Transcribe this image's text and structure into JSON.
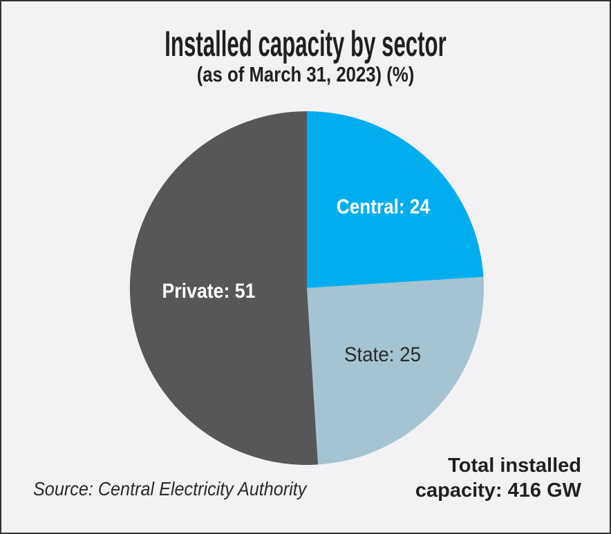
{
  "chart_data": {
    "type": "pie",
    "title": "Installed capacity by sector",
    "subtitle": "(as of March 31, 2023) (%)",
    "unit": "%",
    "start_angle_deg": 0,
    "direction": "clockwise",
    "slices": [
      {
        "label": "Central",
        "value": 24,
        "color": "#00aeef",
        "label_color": "#ffffff",
        "bold_label": true,
        "label_radius_frac": 0.63
      },
      {
        "label": "State",
        "value": 25,
        "color": "#a6c3d1",
        "label_color": "#2b2b2d",
        "bold_label": false,
        "label_radius_frac": 0.57
      },
      {
        "label": "Private",
        "value": 51,
        "color": "#575659",
        "label_color": "#ffffff",
        "bold_label": true,
        "label_radius_frac": 0.555
      }
    ],
    "annotations": {
      "total": "Total installed capacity: 416 GW",
      "source": "Central Electricity Authority"
    }
  },
  "footer": {
    "source_text": "Source: Central Electricity Authority",
    "total_lines": [
      "Total installed",
      "capacity: 416 GW"
    ]
  },
  "colors": {
    "background": "#f2f2f4",
    "border": "#323234",
    "text": "#221f20"
  }
}
